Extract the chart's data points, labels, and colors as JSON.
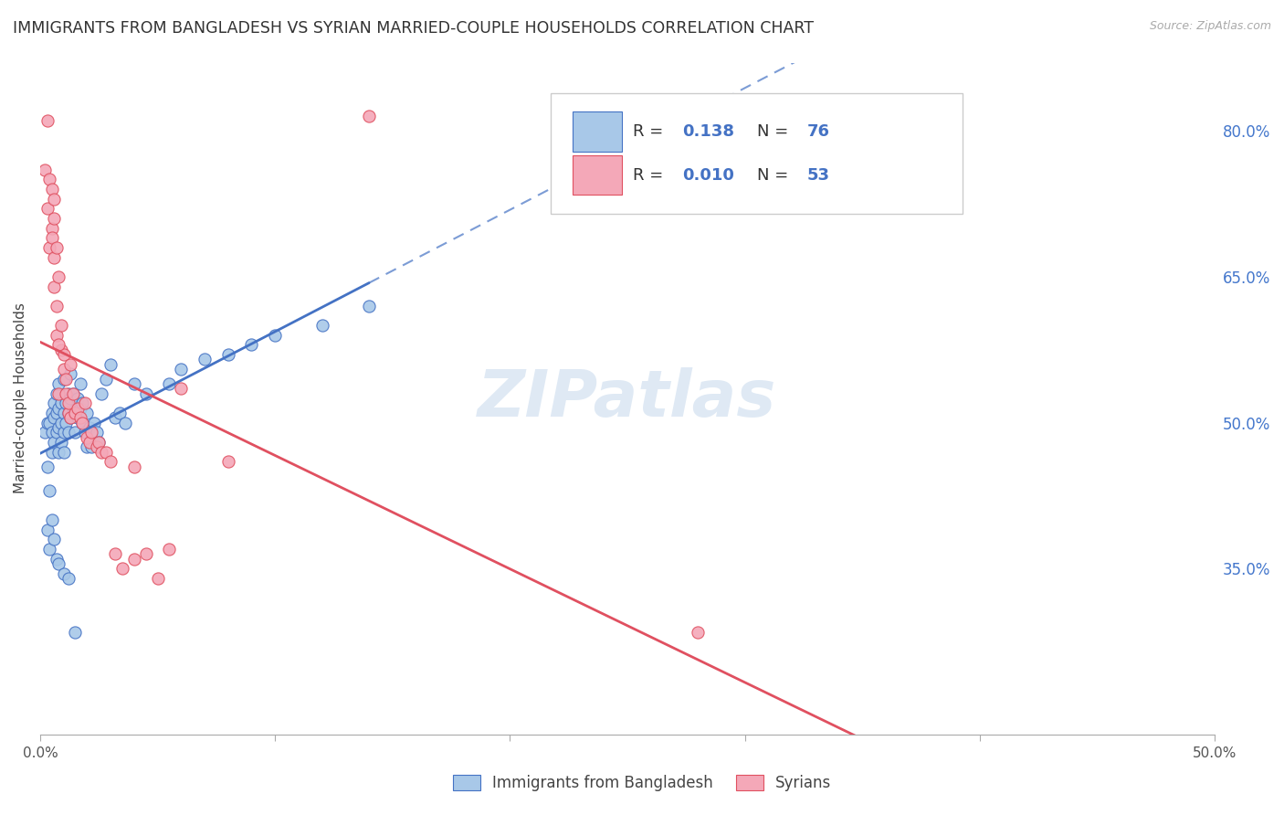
{
  "title": "IMMIGRANTS FROM BANGLADESH VS SYRIAN MARRIED-COUPLE HOUSEHOLDS CORRELATION CHART",
  "source": "Source: ZipAtlas.com",
  "ylabel": "Married-couple Households",
  "xlim": [
    0.0,
    0.5
  ],
  "ylim": [
    0.18,
    0.87
  ],
  "xtick_pos": [
    0.0,
    0.1,
    0.2,
    0.3,
    0.4,
    0.5
  ],
  "xtick_labels": [
    "0.0%",
    "",
    "",
    "",
    "",
    "50.0%"
  ],
  "ytick_vals_right": [
    0.8,
    0.65,
    0.5,
    0.35
  ],
  "ytick_labels_right": [
    "80.0%",
    "65.0%",
    "50.0%",
    "35.0%"
  ],
  "legend_label1": "Immigrants from Bangladesh",
  "legend_label2": "Syrians",
  "r1": "0.138",
  "n1": "76",
  "r2": "0.010",
  "n2": "53",
  "color1": "#a8c8e8",
  "color2": "#f4a8b8",
  "line1_color": "#4472c4",
  "line2_color": "#e05060",
  "watermark": "ZIPatlas",
  "background_color": "#ffffff",
  "title_fontsize": 12.5,
  "axis_label_fontsize": 11,
  "tick_fontsize": 11,
  "blue_x": [
    0.002,
    0.003,
    0.003,
    0.004,
    0.004,
    0.005,
    0.005,
    0.005,
    0.006,
    0.006,
    0.006,
    0.007,
    0.007,
    0.007,
    0.008,
    0.008,
    0.008,
    0.008,
    0.009,
    0.009,
    0.009,
    0.01,
    0.01,
    0.01,
    0.01,
    0.011,
    0.011,
    0.012,
    0.012,
    0.012,
    0.013,
    0.013,
    0.013,
    0.014,
    0.014,
    0.015,
    0.015,
    0.016,
    0.016,
    0.017,
    0.017,
    0.018,
    0.018,
    0.019,
    0.02,
    0.02,
    0.021,
    0.022,
    0.023,
    0.024,
    0.025,
    0.026,
    0.028,
    0.03,
    0.032,
    0.034,
    0.036,
    0.04,
    0.045,
    0.055,
    0.06,
    0.07,
    0.08,
    0.09,
    0.1,
    0.12,
    0.14,
    0.003,
    0.004,
    0.005,
    0.006,
    0.007,
    0.008,
    0.01,
    0.012,
    0.015
  ],
  "blue_y": [
    0.49,
    0.455,
    0.5,
    0.43,
    0.5,
    0.47,
    0.49,
    0.51,
    0.48,
    0.505,
    0.52,
    0.49,
    0.51,
    0.53,
    0.47,
    0.495,
    0.515,
    0.54,
    0.48,
    0.5,
    0.52,
    0.47,
    0.49,
    0.51,
    0.545,
    0.5,
    0.52,
    0.49,
    0.51,
    0.53,
    0.505,
    0.525,
    0.55,
    0.51,
    0.53,
    0.49,
    0.51,
    0.505,
    0.525,
    0.515,
    0.54,
    0.5,
    0.52,
    0.49,
    0.475,
    0.51,
    0.495,
    0.475,
    0.5,
    0.49,
    0.48,
    0.53,
    0.545,
    0.56,
    0.505,
    0.51,
    0.5,
    0.54,
    0.53,
    0.54,
    0.555,
    0.565,
    0.57,
    0.58,
    0.59,
    0.6,
    0.62,
    0.39,
    0.37,
    0.4,
    0.38,
    0.36,
    0.355,
    0.345,
    0.34,
    0.285
  ],
  "pink_x": [
    0.002,
    0.003,
    0.004,
    0.005,
    0.005,
    0.006,
    0.006,
    0.006,
    0.007,
    0.007,
    0.007,
    0.008,
    0.008,
    0.009,
    0.009,
    0.01,
    0.01,
    0.011,
    0.011,
    0.012,
    0.012,
    0.013,
    0.013,
    0.014,
    0.015,
    0.016,
    0.017,
    0.018,
    0.019,
    0.02,
    0.021,
    0.022,
    0.024,
    0.025,
    0.026,
    0.028,
    0.03,
    0.032,
    0.035,
    0.04,
    0.04,
    0.045,
    0.05,
    0.055,
    0.06,
    0.08,
    0.14,
    0.28,
    0.003,
    0.004,
    0.005,
    0.006,
    0.008
  ],
  "pink_y": [
    0.76,
    0.72,
    0.68,
    0.7,
    0.69,
    0.67,
    0.64,
    0.71,
    0.68,
    0.59,
    0.62,
    0.65,
    0.53,
    0.575,
    0.6,
    0.555,
    0.57,
    0.545,
    0.53,
    0.51,
    0.52,
    0.505,
    0.56,
    0.53,
    0.51,
    0.515,
    0.505,
    0.5,
    0.52,
    0.485,
    0.48,
    0.49,
    0.475,
    0.48,
    0.47,
    0.47,
    0.46,
    0.365,
    0.35,
    0.36,
    0.455,
    0.365,
    0.34,
    0.37,
    0.535,
    0.46,
    0.815,
    0.285,
    0.81,
    0.75,
    0.74,
    0.73,
    0.58
  ]
}
